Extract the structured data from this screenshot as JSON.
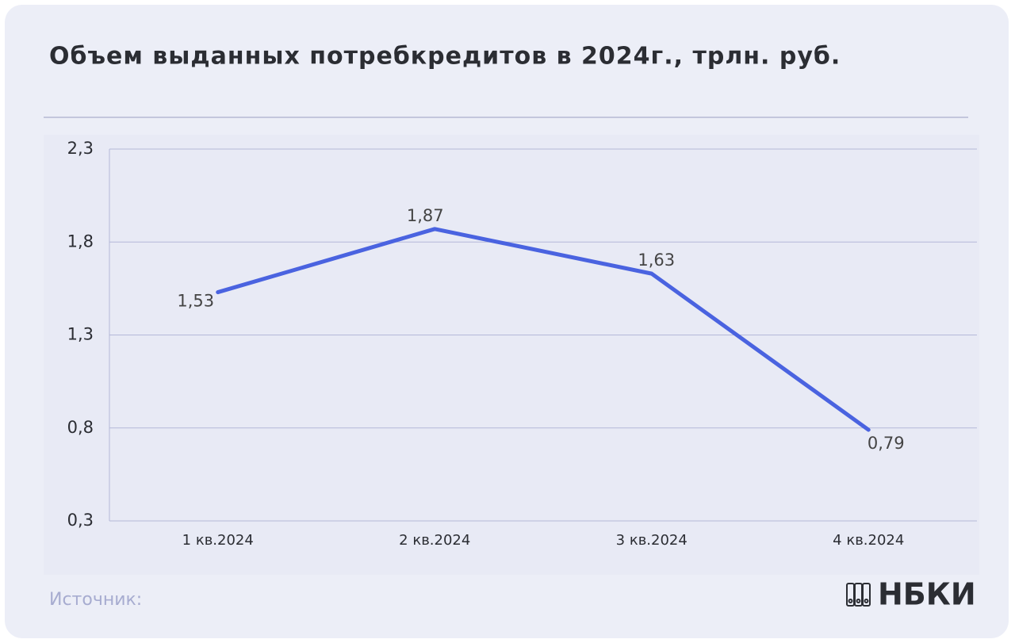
{
  "chart_data": {
    "type": "line",
    "title": "Объем выданных потребкредитов в 2024г., трлн. руб.",
    "categories": [
      "1 кв.2024",
      "2 кв.2024",
      "3 кв.2024",
      "4 кв.2024"
    ],
    "values": [
      1.53,
      1.87,
      1.63,
      0.79
    ],
    "value_labels": [
      "1,53",
      "1,87",
      "1,63",
      "0,79"
    ],
    "color": "#4a63e0",
    "ylim": [
      0.3,
      2.3
    ],
    "yticks": [
      {
        "value": 0.3,
        "label": "0,3"
      },
      {
        "value": 0.8,
        "label": "0,8"
      },
      {
        "value": 1.3,
        "label": "1,3"
      },
      {
        "value": 1.8,
        "label": "1,8"
      },
      {
        "value": 2.3,
        "label": "2,3"
      }
    ],
    "grid": true
  },
  "footer": {
    "source": "Источник:",
    "logo": "НБКИ"
  }
}
